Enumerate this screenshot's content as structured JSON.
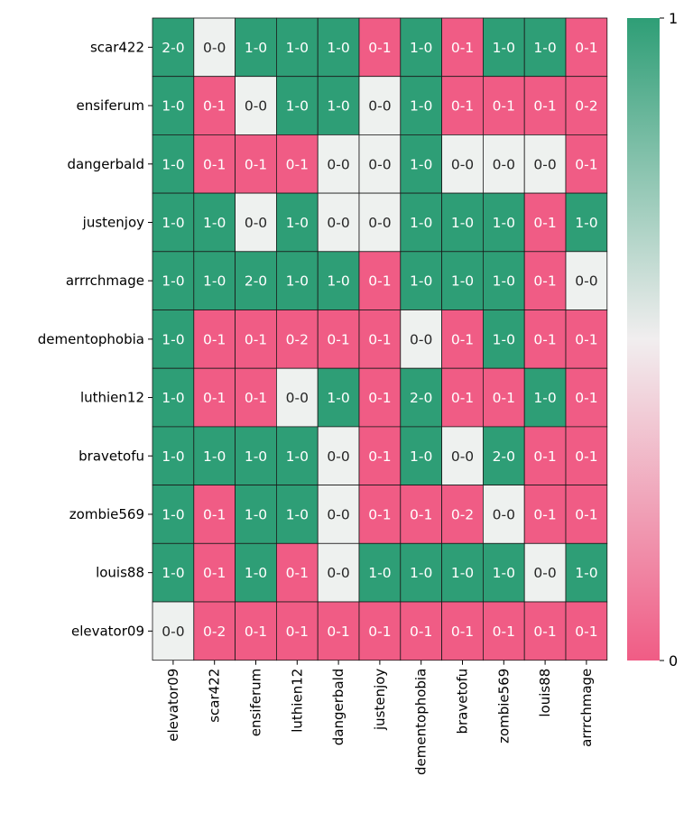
{
  "chart_data": {
    "type": "heatmap",
    "rows": [
      "scar422",
      "ensiferum",
      "dangerbald",
      "justenjoy",
      "arrrchmage",
      "dementophobia",
      "luthien12",
      "bravetofu",
      "zombie569",
      "louis88",
      "elevator09"
    ],
    "columns": [
      "elevator09",
      "scar422",
      "ensiferum",
      "luthien12",
      "dangerbald",
      "justenjoy",
      "dementophobia",
      "bravetofu",
      "zombie569",
      "louis88",
      "arrrchmage"
    ],
    "cells": [
      [
        "2-0",
        "0-0",
        "1-0",
        "1-0",
        "1-0",
        "0-1",
        "1-0",
        "0-1",
        "1-0",
        "1-0",
        "0-1"
      ],
      [
        "1-0",
        "0-1",
        "0-0",
        "1-0",
        "1-0",
        "0-0",
        "1-0",
        "0-1",
        "0-1",
        "0-1",
        "0-2"
      ],
      [
        "1-0",
        "0-1",
        "0-1",
        "0-1",
        "0-0",
        "0-0",
        "1-0",
        "0-0",
        "0-0",
        "0-0",
        "0-1"
      ],
      [
        "1-0",
        "1-0",
        "0-0",
        "1-0",
        "0-0",
        "0-0",
        "1-0",
        "1-0",
        "1-0",
        "0-1",
        "1-0"
      ],
      [
        "1-0",
        "1-0",
        "2-0",
        "1-0",
        "1-0",
        "0-1",
        "1-0",
        "1-0",
        "1-0",
        "0-1",
        "0-0"
      ],
      [
        "1-0",
        "0-1",
        "0-1",
        "0-2",
        "0-1",
        "0-1",
        "0-0",
        "0-1",
        "1-0",
        "0-1",
        "0-1"
      ],
      [
        "1-0",
        "0-1",
        "0-1",
        "0-0",
        "1-0",
        "0-1",
        "2-0",
        "0-1",
        "0-1",
        "1-0",
        "0-1"
      ],
      [
        "1-0",
        "1-0",
        "1-0",
        "1-0",
        "0-0",
        "0-1",
        "1-0",
        "0-0",
        "2-0",
        "0-1",
        "0-1"
      ],
      [
        "1-0",
        "0-1",
        "1-0",
        "1-0",
        "0-0",
        "0-1",
        "0-1",
        "0-2",
        "0-0",
        "0-1",
        "0-1"
      ],
      [
        "1-0",
        "0-1",
        "1-0",
        "0-1",
        "0-0",
        "1-0",
        "1-0",
        "1-0",
        "1-0",
        "0-0",
        "1-0"
      ],
      [
        "0-0",
        "0-2",
        "0-1",
        "0-1",
        "0-1",
        "0-1",
        "0-1",
        "0-1",
        "0-1",
        "0-1",
        "0-1"
      ]
    ],
    "colorbar": {
      "min": 0,
      "max": 1,
      "ticks": [
        "0",
        "1"
      ]
    },
    "colors": {
      "win": "#2e9e76",
      "draw": "#eef1ef",
      "loss": "#f05c85",
      "mid": "#f1eeef"
    }
  }
}
